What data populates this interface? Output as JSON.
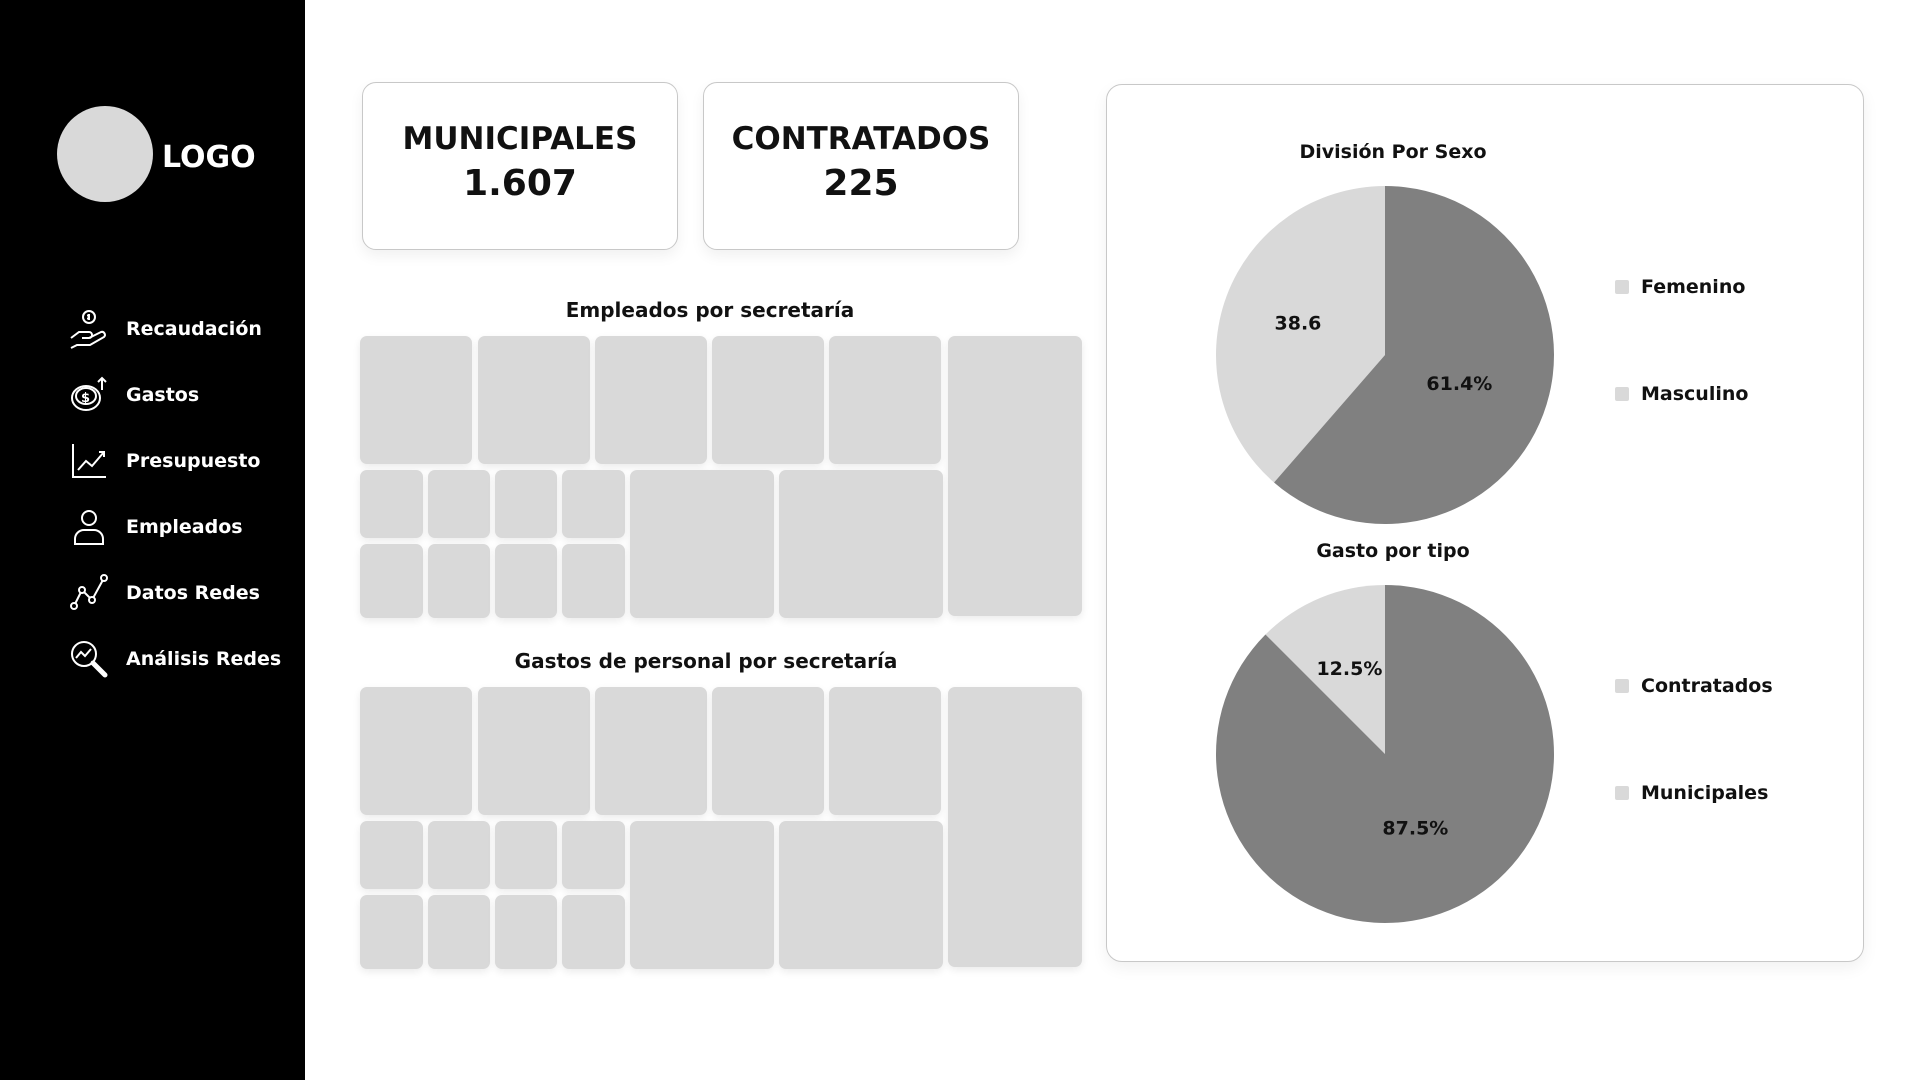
{
  "sidebar": {
    "logo_text": "LOGO",
    "items": [
      {
        "label": "Recaudación",
        "icon": "hand-coin-icon"
      },
      {
        "label": "Gastos",
        "icon": "coins-up-icon"
      },
      {
        "label": "Presupuesto",
        "icon": "line-chart-icon"
      },
      {
        "label": "Empleados",
        "icon": "user-icon"
      },
      {
        "label": "Datos Redes",
        "icon": "network-graph-icon"
      },
      {
        "label": "Análisis Redes",
        "icon": "search-analytics-icon"
      }
    ]
  },
  "kpis": {
    "municipales": {
      "label": "MUNICIPALES",
      "value": "1.607"
    },
    "contratados": {
      "label": "CONTRATADOS",
      "value": "225"
    }
  },
  "treemaps": {
    "empleados_title": "Empleados por secretaría",
    "gastos_title": "Gastos de personal por secretaría"
  },
  "chart_data": [
    {
      "type": "pie",
      "title": "División Por Sexo",
      "categories": [
        "Femenino",
        "Masculino"
      ],
      "values": [
        38.6,
        61.4
      ],
      "data_labels": [
        "38.6",
        "61.4%"
      ],
      "colors": [
        "#d9d9d9",
        "#808080"
      ],
      "legend": "right"
    },
    {
      "type": "pie",
      "title": "Gasto por tipo",
      "categories": [
        "Contratados",
        "Municipales"
      ],
      "values": [
        12.5,
        87.5
      ],
      "data_labels": [
        "12.5%",
        "87.5%"
      ],
      "colors": [
        "#d9d9d9",
        "#808080"
      ],
      "legend": "right"
    }
  ]
}
